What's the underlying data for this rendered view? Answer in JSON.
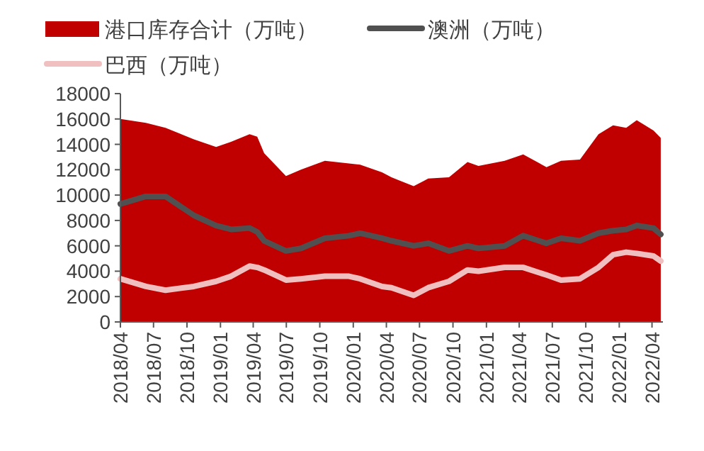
{
  "chart_data": {
    "type": "area",
    "x": [
      "2018-04-01",
      "2018-06-10",
      "2018-08-03",
      "2018-10-20",
      "2018-12-20",
      "2019-01-30",
      "2019-03-22",
      "2019-04-12",
      "2019-05-01",
      "2019-06-30",
      "2019-08-10",
      "2019-10-15",
      "2019-12-20",
      "2020-01-20",
      "2020-03-20",
      "2020-04-15",
      "2020-06-15",
      "2020-07-25",
      "2020-09-20",
      "2020-11-10",
      "2020-12-10",
      "2021-02-20",
      "2021-04-12",
      "2021-06-15",
      "2021-07-25",
      "2021-09-15",
      "2021-11-05",
      "2021-12-15",
      "2022-01-20",
      "2022-02-18",
      "2022-04-05",
      "2022-04-25"
    ],
    "series": [
      {
        "name": "港口库存合计（万吨）",
        "color": "#c00000",
        "values": [
          16000,
          15700,
          15300,
          14400,
          13800,
          14200,
          14800,
          14600,
          13300,
          11500,
          12000,
          12700,
          12500,
          12400,
          11800,
          11400,
          10700,
          11300,
          11400,
          12600,
          12300,
          12700,
          13200,
          12200,
          12700,
          12800,
          14800,
          15500,
          15300,
          15900,
          15100,
          14500
        ]
      },
      {
        "name": "澳洲（万吨）",
        "type": "line",
        "color": "#505050",
        "values": [
          9300,
          9900,
          9900,
          8400,
          7600,
          7300,
          7400,
          7100,
          6400,
          5600,
          5800,
          6600,
          6800,
          7000,
          6600,
          6400,
          6000,
          6200,
          5600,
          6000,
          5800,
          6000,
          6800,
          6200,
          6600,
          6400,
          7000,
          7200,
          7300,
          7600,
          7400,
          6900
        ]
      },
      {
        "name": "巴西（万吨）",
        "type": "line",
        "color": "#f0c0c0",
        "values": [
          3400,
          2800,
          2500,
          2800,
          3200,
          3600,
          4400,
          4300,
          4100,
          3300,
          3400,
          3600,
          3600,
          3400,
          2800,
          2700,
          2100,
          2700,
          3200,
          4100,
          4000,
          4300,
          4300,
          3700,
          3300,
          3400,
          4300,
          5300,
          5500,
          5400,
          5200,
          4800
        ]
      }
    ],
    "xlim": [
      "2018-04-01",
      "2022-05-01"
    ],
    "xticks": [
      {
        "value": "2018-04",
        "label": "2018/04"
      },
      {
        "value": "2018-07",
        "label": "2018/07"
      },
      {
        "value": "2018-10",
        "label": "2018/10"
      },
      {
        "value": "2019-01",
        "label": "2019/01"
      },
      {
        "value": "2019-04",
        "label": "2019/04"
      },
      {
        "value": "2019-07",
        "label": "2019/07"
      },
      {
        "value": "2019-10",
        "label": "2019/10"
      },
      {
        "value": "2020-01",
        "label": "2020/01"
      },
      {
        "value": "2020-04",
        "label": "2020/04"
      },
      {
        "value": "2020-07",
        "label": "2020/07"
      },
      {
        "value": "2020-10",
        "label": "2020/10"
      },
      {
        "value": "2021-01",
        "label": "2021/01"
      },
      {
        "value": "2021-04",
        "label": "2021/04"
      },
      {
        "value": "2021-07",
        "label": "2021/07"
      },
      {
        "value": "2021-10",
        "label": "2021/10"
      },
      {
        "value": "2022-01",
        "label": "2022/01"
      },
      {
        "value": "2022-04",
        "label": "2022/04"
      }
    ],
    "ylim": [
      0,
      18000
    ],
    "yticks": [
      0,
      2000,
      4000,
      6000,
      8000,
      10000,
      12000,
      14000,
      16000,
      18000
    ],
    "legend": "top"
  }
}
